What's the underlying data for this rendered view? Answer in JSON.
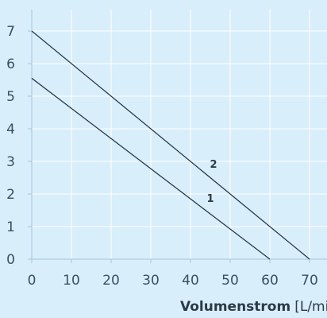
{
  "chart_data": {
    "type": "line",
    "title": "",
    "xlabel_bold": "Volumenstrom",
    "xlabel_unit": "[L/min",
    "ylabel": "",
    "xlim": [
      0,
      70
    ],
    "ylim": [
      0,
      7
    ],
    "x_ticks": [
      0,
      10,
      20,
      30,
      40,
      50,
      60,
      70
    ],
    "y_ticks": [
      0,
      1,
      2,
      3,
      4,
      5,
      6,
      7
    ],
    "grid": true,
    "series": [
      {
        "name": "1",
        "x": [
          0,
          60
        ],
        "y": [
          5.55,
          0
        ]
      },
      {
        "name": "2",
        "x": [
          0,
          70
        ],
        "y": [
          7.0,
          0
        ]
      }
    ],
    "colors": {
      "background": "#d9eefb",
      "grid": "#ffffff",
      "axis": "#a8c4d8",
      "line": "#2b3a47",
      "tick_text": "#3a4f60"
    }
  }
}
